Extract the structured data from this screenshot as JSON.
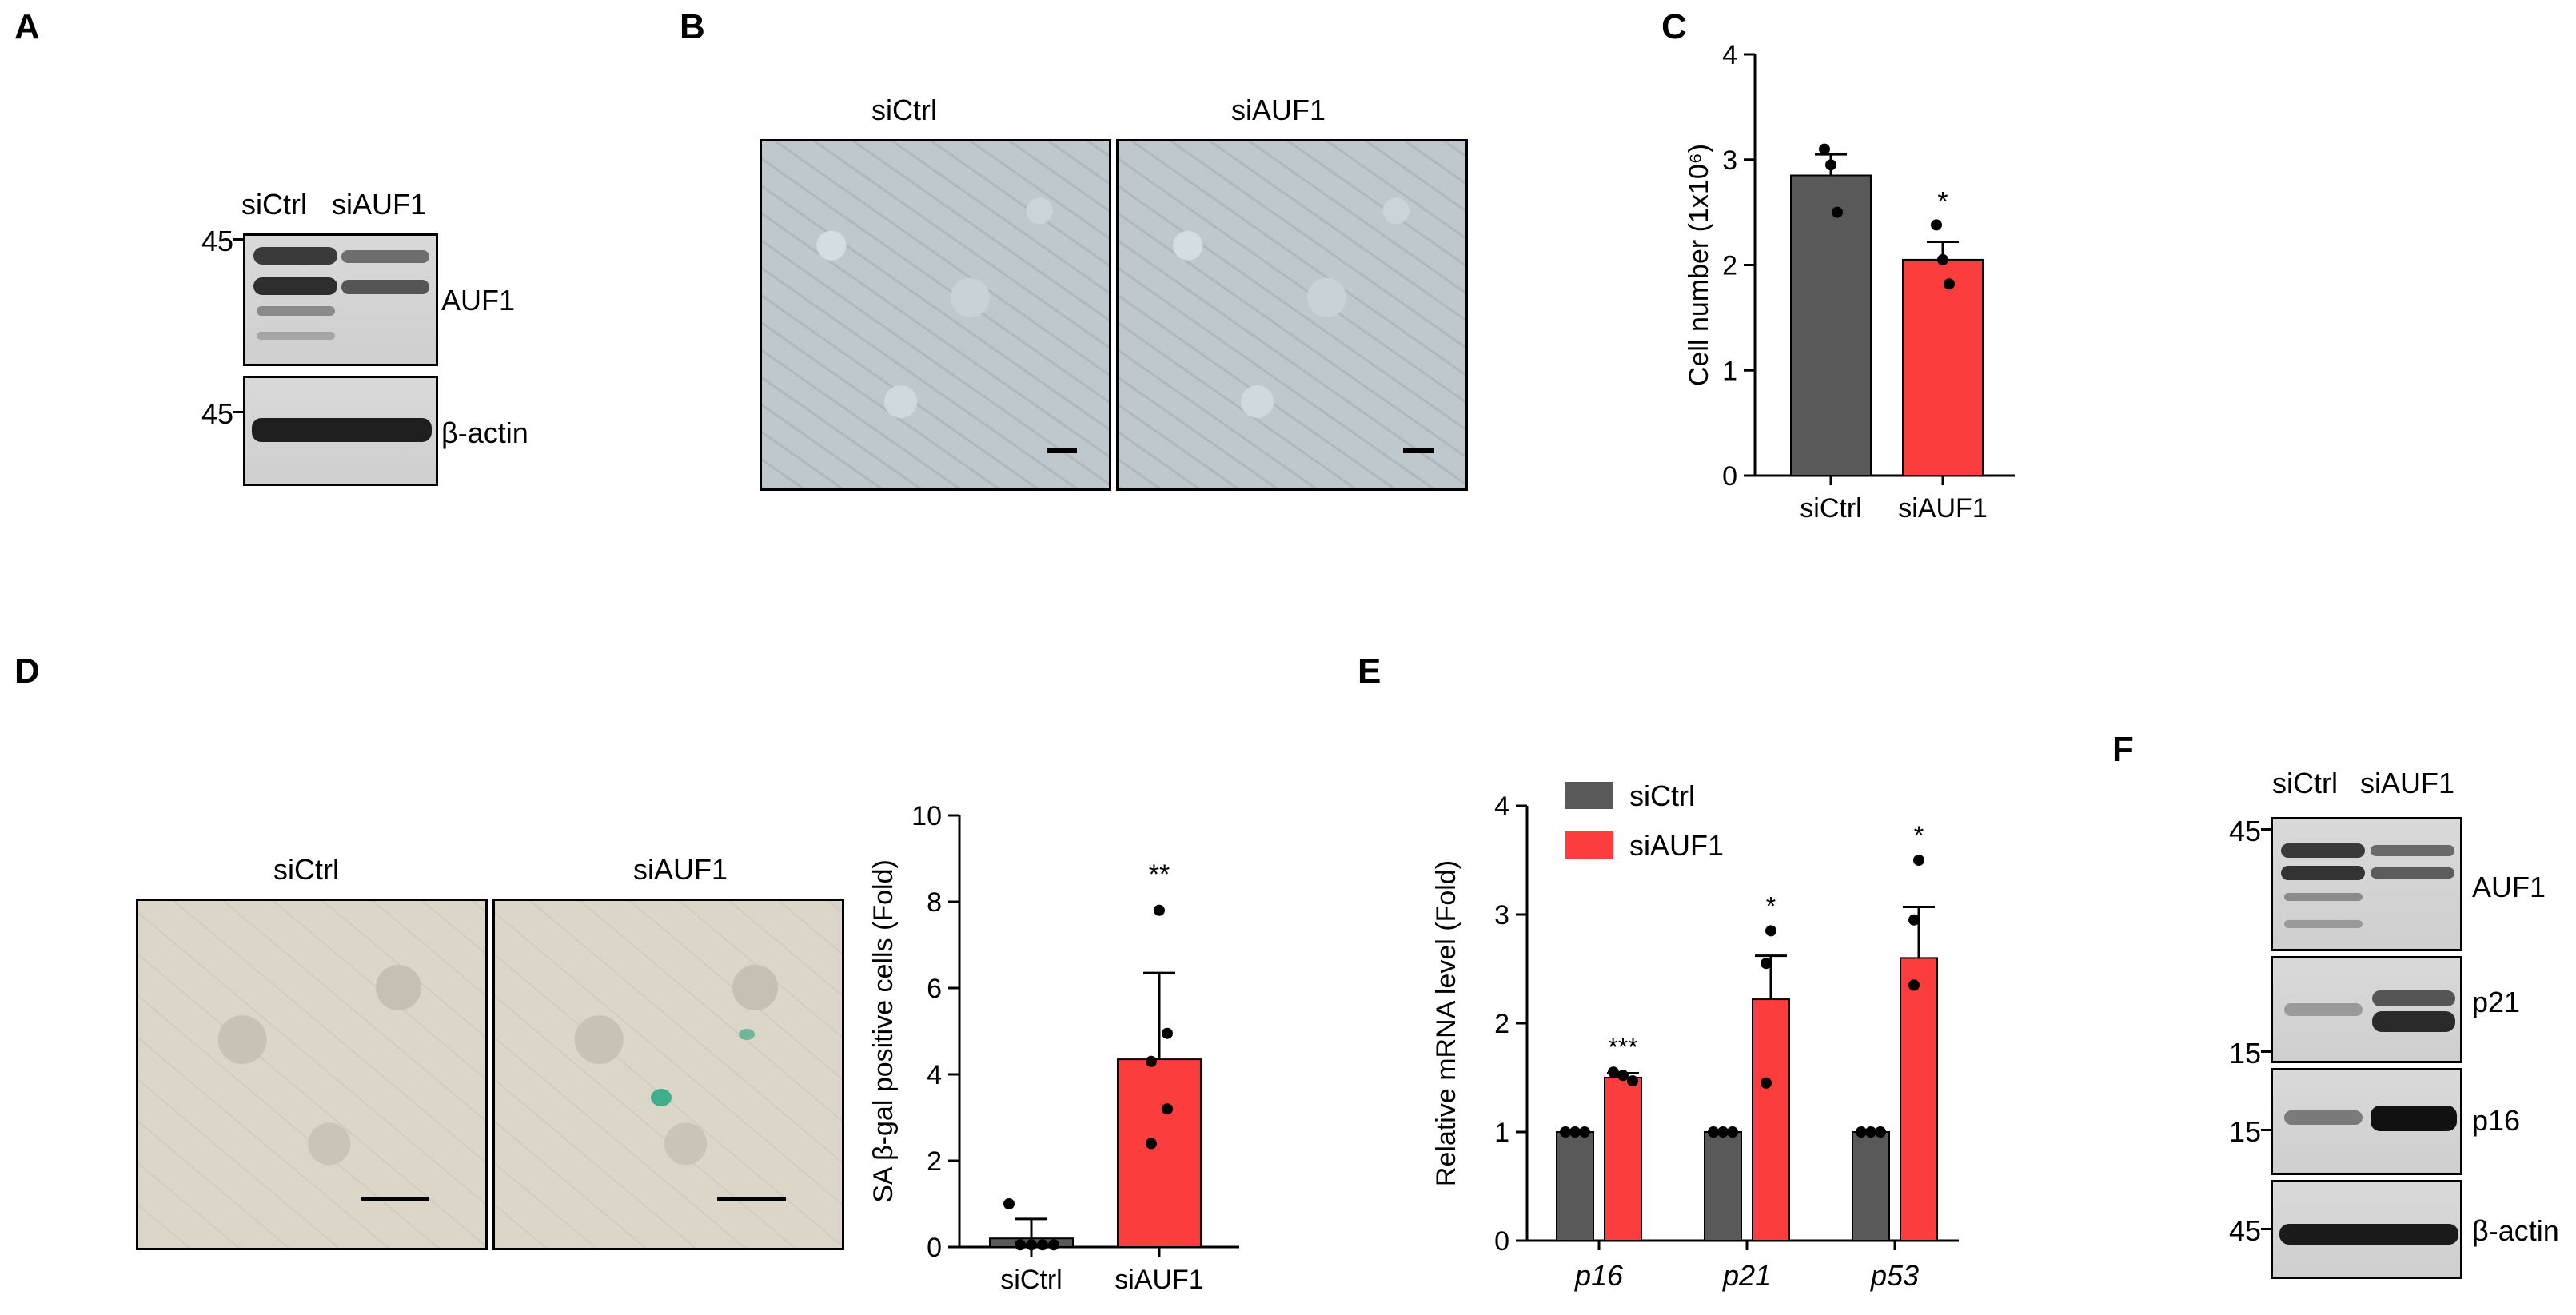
{
  "panels": {
    "A": {
      "label": "A",
      "lanes": [
        "siCtrl",
        "siAUF1"
      ],
      "blots": [
        {
          "marker": "45",
          "target": "AUF1"
        },
        {
          "marker": "45",
          "target": "β-actin"
        }
      ]
    },
    "B": {
      "label": "B",
      "images": [
        {
          "title": "siCtrl"
        },
        {
          "title": "siAUF1"
        }
      ]
    },
    "C": {
      "label": "C"
    },
    "D": {
      "label": "D",
      "images": [
        {
          "title": "siCtrl"
        },
        {
          "title": "siAUF1"
        }
      ]
    },
    "E": {
      "label": "E"
    },
    "F": {
      "label": "F",
      "lanes": [
        "siCtrl",
        "siAUF1"
      ],
      "blots": [
        {
          "marker": "45",
          "target": "AUF1"
        },
        {
          "marker": "15",
          "target": "p21"
        },
        {
          "marker": "15",
          "target": "p16"
        },
        {
          "marker": "45",
          "target": "β-actin"
        }
      ]
    }
  },
  "colors": {
    "control": "#595959",
    "knockdown": "#fb3d3d",
    "axis": "#000000"
  },
  "chart_data": [
    {
      "id": "C",
      "type": "bar",
      "categories": [
        "siCtrl",
        "siAUF1"
      ],
      "values": [
        2.85,
        2.05
      ],
      "errors": [
        0.2,
        0.17
      ],
      "points": [
        [
          3.1,
          2.95,
          2.5
        ],
        [
          2.38,
          2.05,
          1.82
        ]
      ],
      "significance": [
        "",
        "*"
      ],
      "ylabel": "Cell number (1x10⁶)",
      "ylim": [
        0,
        4
      ],
      "yticks": [
        "0",
        "1",
        "2",
        "3",
        "4"
      ]
    },
    {
      "id": "D",
      "type": "bar",
      "categories": [
        "siCtrl",
        "siAUF1"
      ],
      "values": [
        0.2,
        4.35
      ],
      "errors": [
        0.45,
        2.0
      ],
      "points": [
        [
          1.0,
          0.05,
          0.05,
          0.05,
          0.05
        ],
        [
          7.8,
          4.95,
          4.3,
          3.2,
          2.4
        ]
      ],
      "significance": [
        "",
        "**"
      ],
      "ylabel": "SA β-gal positive cells (Fold)",
      "ylim": [
        0,
        10
      ],
      "yticks": [
        "0",
        "2",
        "4",
        "6",
        "8",
        "10"
      ]
    },
    {
      "id": "E",
      "type": "bar",
      "categories": [
        "p16",
        "p21",
        "p53"
      ],
      "series": [
        {
          "name": "siCtrl",
          "values": [
            1.0,
            1.0,
            1.0
          ],
          "points": [
            [
              1,
              1,
              1
            ],
            [
              1,
              1,
              1
            ],
            [
              1,
              1,
              1
            ]
          ]
        },
        {
          "name": "siAUF1",
          "values": [
            1.5,
            2.22,
            2.6
          ],
          "errors": [
            0.04,
            0.4,
            0.47
          ],
          "points": [
            [
              1.55,
              1.52,
              1.47
            ],
            [
              2.85,
              2.55,
              1.45
            ],
            [
              3.5,
              2.95,
              2.35
            ]
          ]
        }
      ],
      "significance": [
        "***",
        "*",
        "*"
      ],
      "ylabel": "Relative mRNA level (Fold)",
      "ylim": [
        0,
        4
      ],
      "yticks": [
        "0",
        "1",
        "2",
        "3",
        "4"
      ],
      "legend": "top-left"
    }
  ]
}
